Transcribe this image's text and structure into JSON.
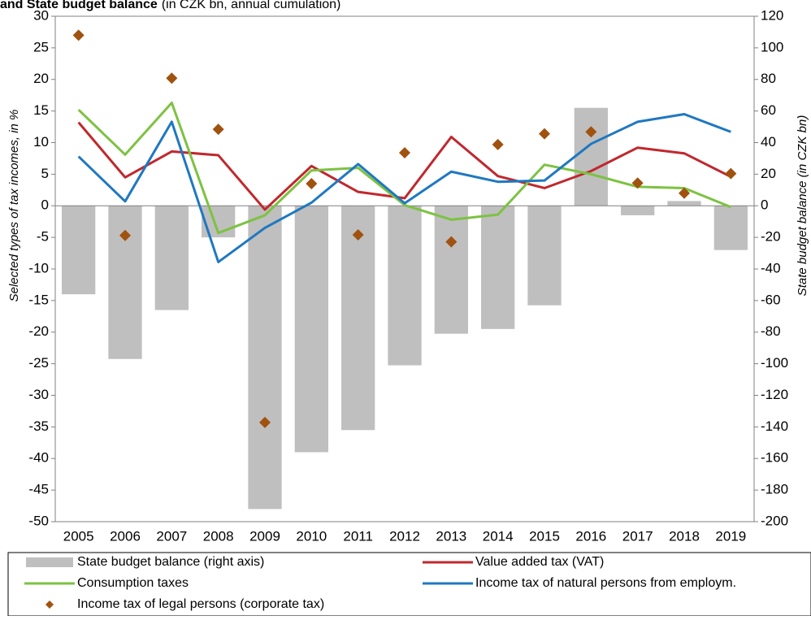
{
  "chart_data": {
    "type": "combo",
    "title": "and State budget balance",
    "subtitle": "(in CZK bn, annual cumulation)",
    "y_label": "Selected types of tax incomes, in %",
    "y2_label": "State budget balance (in CZK bn)",
    "categories": [
      "2005",
      "2006",
      "2007",
      "2008",
      "2009",
      "2010",
      "2011",
      "2012",
      "2013",
      "2014",
      "2015",
      "2016",
      "2017",
      "2018",
      "2019"
    ],
    "ylim": [
      -50,
      30
    ],
    "yticks": [
      -50,
      -45,
      -40,
      -35,
      -30,
      -25,
      -20,
      -15,
      -10,
      -5,
      0,
      5,
      10,
      15,
      20,
      25,
      30
    ],
    "y2lim": [
      -200,
      120
    ],
    "y2ticks": [
      -200,
      -180,
      -160,
      -140,
      -120,
      -100,
      -80,
      -60,
      -40,
      -20,
      0,
      20,
      40,
      60,
      80,
      100,
      120
    ],
    "series": [
      {
        "name": "State budget balance (right axis)",
        "kind": "bar",
        "axis": "y2",
        "color": "#bfbfbf",
        "values": [
          -56,
          -97,
          -66,
          -20,
          -192,
          -156,
          -142,
          -101,
          -81,
          -78,
          -63,
          62,
          -6,
          3,
          -28
        ]
      },
      {
        "name": "Value added tax (VAT)",
        "kind": "line",
        "color": "#c0282d",
        "values": [
          13.2,
          4.5,
          8.6,
          8.0,
          -0.6,
          6.3,
          2.2,
          1.2,
          10.9,
          4.7,
          2.8,
          5.5,
          9.2,
          8.3,
          4.6
        ]
      },
      {
        "name": "Consumption taxes",
        "kind": "line",
        "color": "#7dc242",
        "values": [
          15.2,
          8.1,
          16.3,
          -4.3,
          -1.5,
          5.6,
          6.0,
          0.1,
          -2.2,
          -1.4,
          6.5,
          5.0,
          3.0,
          2.8,
          -0.2
        ]
      },
      {
        "name": "Income tax of natural persons from employm.",
        "kind": "line",
        "color": "#1f78c1",
        "values": [
          7.8,
          0.7,
          13.3,
          -8.9,
          -3.5,
          0.5,
          6.6,
          0.4,
          5.4,
          3.8,
          4.0,
          9.8,
          13.3,
          14.5,
          11.7
        ]
      },
      {
        "name": "Income tax of legal persons (corporate tax)",
        "kind": "scatter",
        "color": "#a0520f",
        "values": [
          27,
          -4.7,
          20.2,
          12.1,
          -34.3,
          3.5,
          -4.6,
          8.4,
          -5.7,
          9.7,
          11.4,
          11.7,
          3.6,
          2.0,
          5.1
        ]
      }
    ]
  }
}
